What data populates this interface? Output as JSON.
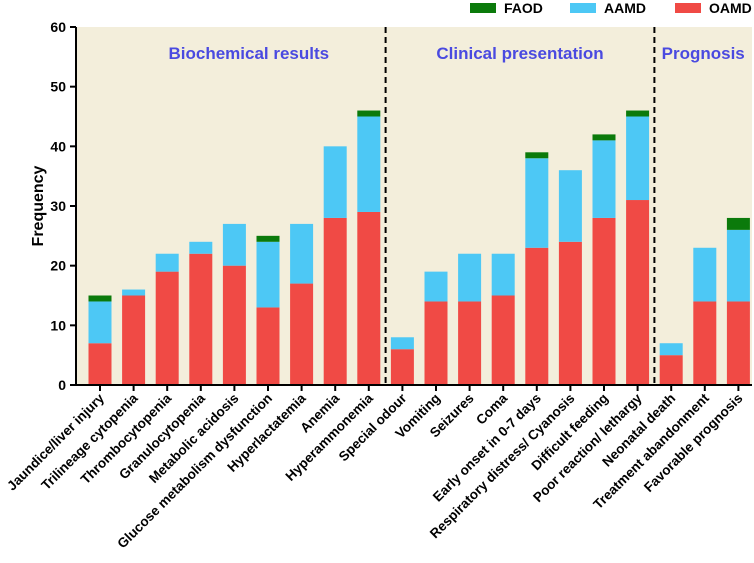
{
  "chart_data": {
    "type": "bar",
    "stacked": true,
    "ylabel": "Frequency",
    "xlabel": "",
    "ylim": [
      0,
      60
    ],
    "yticks": [
      0,
      10,
      20,
      30,
      40,
      50,
      60
    ],
    "categories": [
      "Jaundice/liver injury",
      "Trilineage cytopenia",
      "Thrombocytopenia",
      "Granulocytopenia",
      "Metabolic acidosis",
      "Glucose metabolism dysfunction",
      "Hyperlactatemia",
      "Anemia",
      "Hyperammonemia",
      "Special odour",
      "Vomiting",
      "Seizures",
      "Coma",
      "Early onset in 0-7 days",
      "Respiratory distress/ Cyanosis",
      "Difficult feeding",
      "Poor reaction/ lethargy",
      "Neonatal death",
      "Treatment abandonment",
      "Favorable prognosis"
    ],
    "series": [
      {
        "name": "OAMD",
        "color": "#f04a45",
        "values": [
          7,
          15,
          19,
          22,
          20,
          13,
          17,
          28,
          29,
          6,
          14,
          14,
          15,
          23,
          24,
          28,
          31,
          5,
          14,
          14
        ]
      },
      {
        "name": "AAMD",
        "color": "#4dc8f5",
        "values": [
          7,
          1,
          3,
          2,
          7,
          11,
          10,
          12,
          16,
          2,
          5,
          8,
          7,
          15,
          12,
          13,
          14,
          2,
          9,
          12
        ]
      },
      {
        "name": "FAOD",
        "color": "#0b7a0b",
        "values": [
          1,
          0,
          0,
          0,
          0,
          1,
          0,
          0,
          1,
          0,
          0,
          0,
          0,
          1,
          0,
          1,
          1,
          0,
          0,
          2
        ]
      }
    ],
    "legend_order": [
      "FAOD",
      "AAMD",
      "OAMD"
    ],
    "legend_position": "top-right",
    "sections": [
      {
        "label": "Biochemical results",
        "first_index": 0,
        "last_index": 8
      },
      {
        "label": "Clinical presentation",
        "first_index": 9,
        "last_index": 16
      },
      {
        "label": "Prognosis",
        "first_index": 17,
        "last_index": 19
      }
    ],
    "plot_background": "#f3eedb",
    "section_label_color": "#4a4ae0"
  }
}
